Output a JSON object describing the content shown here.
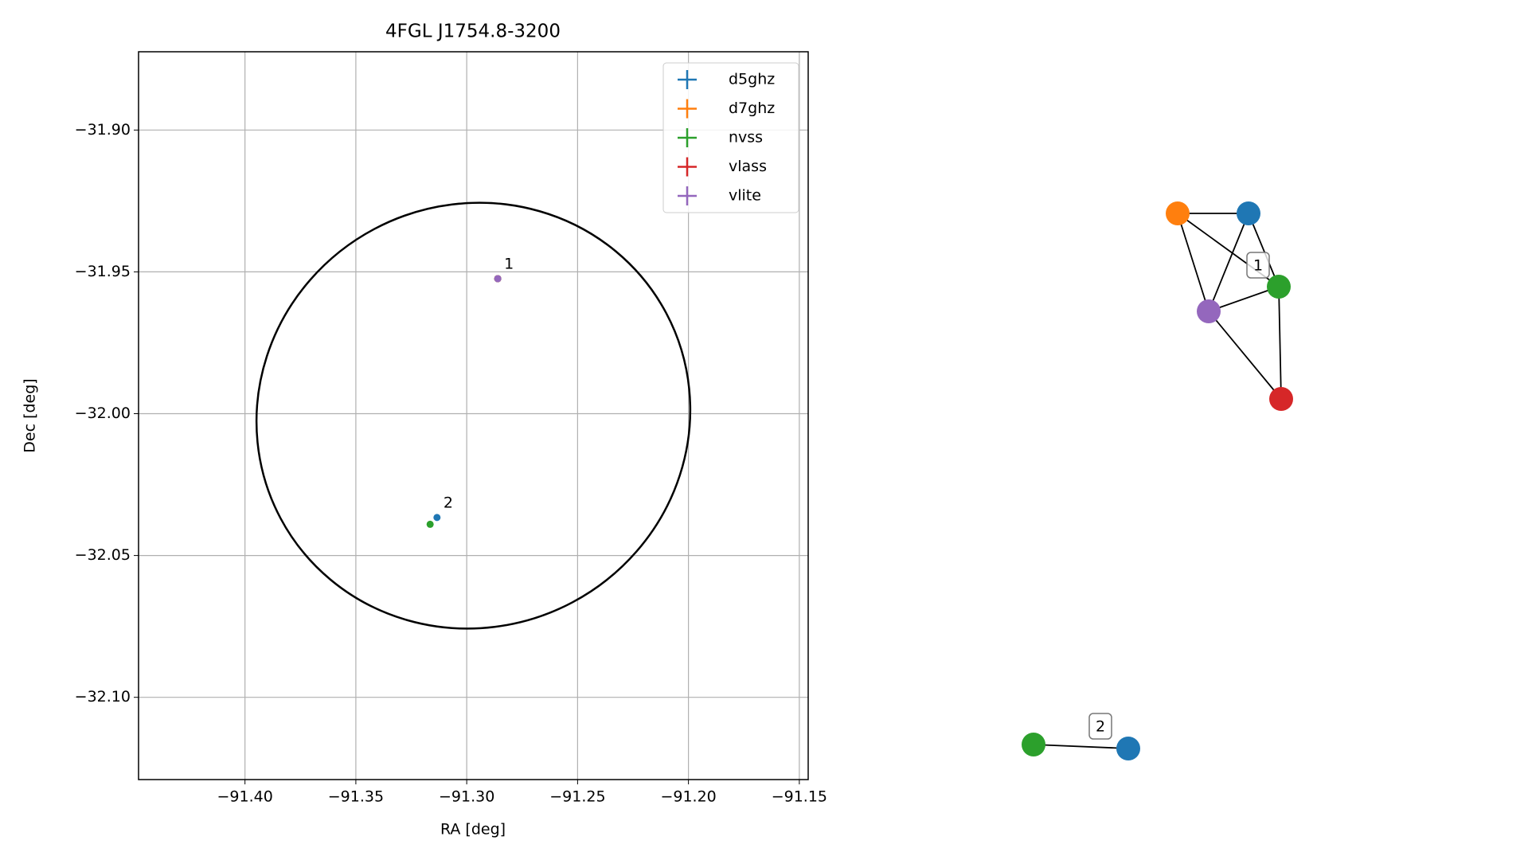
{
  "chart_data": [
    {
      "type": "scatter",
      "title": "4FGL J1754.8-3200",
      "x_label": "RA [deg]",
      "y_label": "Dec [deg]",
      "xlim": [
        -91.448,
        -91.146
      ],
      "ylim": [
        -32.129,
        -31.8724
      ],
      "xticks": [
        {
          "value": -91.4,
          "label": "−91.40"
        },
        {
          "value": -91.35,
          "label": "−91.35"
        },
        {
          "value": -91.3,
          "label": "−91.30"
        },
        {
          "value": -91.25,
          "label": "−91.25"
        },
        {
          "value": -91.2,
          "label": "−91.20"
        },
        {
          "value": -91.15,
          "label": "−91.15"
        }
      ],
      "yticks": [
        {
          "value": -31.9,
          "label": "−31.90"
        },
        {
          "value": -31.95,
          "label": "−31.95"
        },
        {
          "value": -32.0,
          "label": "−32.00"
        },
        {
          "value": -32.05,
          "label": "−32.05"
        },
        {
          "value": -32.1,
          "label": "−32.10"
        }
      ],
      "grid": true,
      "legend": "upper right",
      "series": [
        {
          "name": "d5ghz",
          "color": "#1f77b4",
          "x": [
            -91.286,
            -91.3134
          ],
          "values": [
            -31.9524,
            -32.0366
          ]
        },
        {
          "name": "d7ghz",
          "color": "#ff7f0e",
          "x": [
            -91.286
          ],
          "values": [
            -31.9524
          ]
        },
        {
          "name": "nvss",
          "color": "#2ca02c",
          "x": [
            -91.286,
            -91.3165
          ],
          "values": [
            -31.9524,
            -32.039
          ]
        },
        {
          "name": "vlass",
          "color": "#d62728",
          "x": [
            -91.286
          ],
          "values": [
            -31.9524
          ]
        },
        {
          "name": "vlite",
          "color": "#9467bd",
          "x": [
            -91.286
          ],
          "values": [
            -31.9524
          ]
        }
      ],
      "annotations": [
        {
          "text": "1",
          "x": -91.286,
          "y": -31.9524
        },
        {
          "text": "2",
          "x": -91.3134,
          "y": -32.0366
        }
      ],
      "ellipse": {
        "center": [
          -91.297,
          -32.0007
        ],
        "semi_axes": [
          0.0985,
          0.0745
        ],
        "angle": -28
      }
    },
    {
      "type": "network",
      "nodes": [
        {
          "color": "#ff7f0e"
        },
        {
          "color": "#1f77b4"
        },
        {
          "color": "#2ca02c"
        },
        {
          "color": "#9467bd"
        },
        {
          "color": "#d62728"
        },
        {
          "color": "#2ca02c"
        },
        {
          "color": "#1f77b4"
        }
      ],
      "edges": [
        [
          0,
          1
        ],
        [
          0,
          2
        ],
        [
          0,
          3
        ],
        [
          1,
          3
        ],
        [
          1,
          2
        ],
        [
          3,
          2
        ],
        [
          3,
          4
        ],
        [
          2,
          4
        ],
        [
          5,
          6
        ]
      ],
      "labels": [
        "1",
        "2"
      ]
    }
  ]
}
